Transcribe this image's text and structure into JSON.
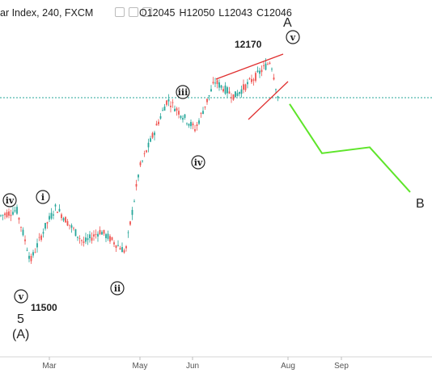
{
  "header": {
    "symbol": "ar Index, 240, FXCM",
    "ohlc": [
      {
        "key": "O",
        "value": "12045"
      },
      {
        "key": "H",
        "value": "12050"
      },
      {
        "key": "L",
        "value": "12043"
      },
      {
        "key": "C",
        "value": "12046"
      }
    ]
  },
  "colors": {
    "up": "#26a69a",
    "down": "#ef5350",
    "projection": "#5ee52a",
    "wedge": "#e03030",
    "price_line": "#26a69a",
    "label_red": "#d81b1b",
    "label_green": "#3cb43c",
    "label_purple": "#c23cc2"
  },
  "icons": [
    "eye-icon",
    "gear-icon",
    "close-icon"
  ],
  "chart_data": {
    "type": "candlestick",
    "x_tick_labels": [
      "Mar",
      "May",
      "Jun",
      "Aug",
      "Sep"
    ],
    "current_price": 12046,
    "price_path": [
      {
        "t": 0,
        "price": 11650
      },
      {
        "t": 0.06,
        "price": 11670
      },
      {
        "t": 0.11,
        "price": 11500
      },
      {
        "t": 0.16,
        "price": 11610
      },
      {
        "t": 0.2,
        "price": 11680
      },
      {
        "t": 0.3,
        "price": 11560
      },
      {
        "t": 0.36,
        "price": 11600
      },
      {
        "t": 0.45,
        "price": 11530
      },
      {
        "t": 0.5,
        "price": 11810
      },
      {
        "t": 0.6,
        "price": 12040
      },
      {
        "t": 0.7,
        "price": 11940
      },
      {
        "t": 0.77,
        "price": 12100
      },
      {
        "t": 0.84,
        "price": 12050
      },
      {
        "t": 0.92,
        "price": 12120
      },
      {
        "t": 0.97,
        "price": 12170
      },
      {
        "t": 1.0,
        "price": 12030
      }
    ],
    "projection": [
      {
        "price": 12025
      },
      {
        "price": 11860
      },
      {
        "price": 11880
      },
      {
        "price": 11730
      }
    ],
    "annotations": {
      "price_high": "12170",
      "price_low": "11500",
      "wave_A": "A",
      "wave_B": "B",
      "wave_5": "5",
      "wave_A_paren": "(A)",
      "wave_i": "i",
      "wave_ii": "ii",
      "wave_iii": "iii",
      "wave_iv_left": "iv",
      "wave_iv_right": "iv",
      "wave_v_left": "v",
      "wave_v_right": "v"
    }
  }
}
